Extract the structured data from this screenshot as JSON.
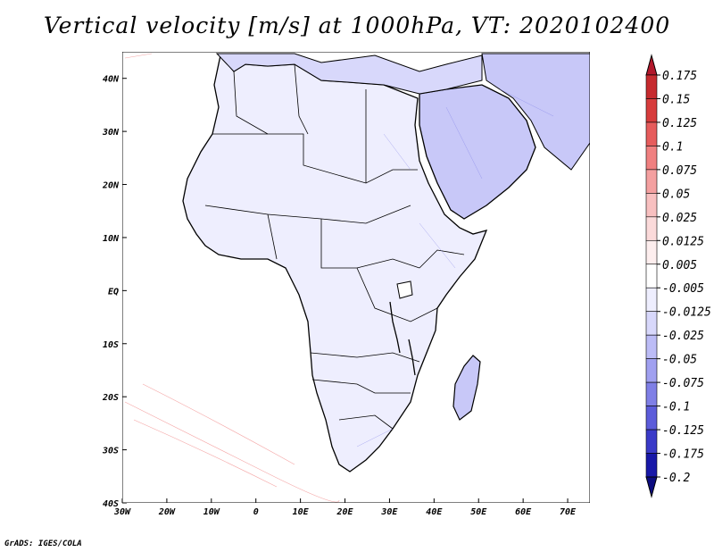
{
  "title": "Vertical velocity [m/s] at 1000hPa, VT: 2020102400",
  "credit": "GrADS: IGES/COLA",
  "map": {
    "lat_labels": [
      "40N",
      "30N",
      "20N",
      "10N",
      "EQ",
      "10S",
      "20S",
      "30S",
      "40S"
    ],
    "lon_labels": [
      "30W",
      "20W",
      "10W",
      "0",
      "10E",
      "20E",
      "30E",
      "40E",
      "50E",
      "60E",
      "70E"
    ],
    "lon_range": [
      -30,
      75
    ],
    "lat_range": [
      -40,
      45
    ]
  },
  "colorbar": {
    "labels": [
      "0.175",
      "0.15",
      "0.125",
      "0.1",
      "0.075",
      "0.05",
      "0.025",
      "0.0125",
      "0.005",
      "-0.005",
      "-0.0125",
      "-0.025",
      "-0.05",
      "-0.075",
      "-0.1",
      "-0.125",
      "-0.175",
      "-0.2"
    ],
    "colors": [
      "#b2182b",
      "#c62a2e",
      "#d73c3c",
      "#e65c5c",
      "#f08080",
      "#f4a0a0",
      "#f8c0c0",
      "#fbdada",
      "#fdeeee",
      "#ffffff",
      "#eeeefe",
      "#d8d8fb",
      "#bcbcf6",
      "#a0a0f0",
      "#7f7fe6",
      "#5c5cda",
      "#3a3ac8",
      "#1818a8",
      "#0c0c80"
    ]
  },
  "chart_data": {
    "type": "heatmap",
    "title": "Vertical velocity [m/s] at 1000hPa, VT: 2020102400",
    "variable": "Vertical velocity",
    "units": "m/s",
    "level": "1000hPa",
    "valid_time": "2020102400",
    "x_tick_labels": [
      "30W",
      "20W",
      "10W",
      "0",
      "10E",
      "20E",
      "30E",
      "40E",
      "50E",
      "60E",
      "70E"
    ],
    "y_tick_labels": [
      "40N",
      "30N",
      "20N",
      "10N",
      "EQ",
      "10S",
      "20S",
      "30S",
      "40S"
    ],
    "xlim": [
      -30,
      75
    ],
    "ylim": [
      -40,
      45
    ],
    "contour_levels": [
      0.175,
      0.15,
      0.125,
      0.1,
      0.075,
      0.05,
      0.025,
      0.0125,
      0.005,
      -0.005,
      -0.0125,
      -0.025,
      -0.05,
      -0.075,
      -0.1,
      -0.125,
      -0.175,
      -0.2
    ]
  }
}
